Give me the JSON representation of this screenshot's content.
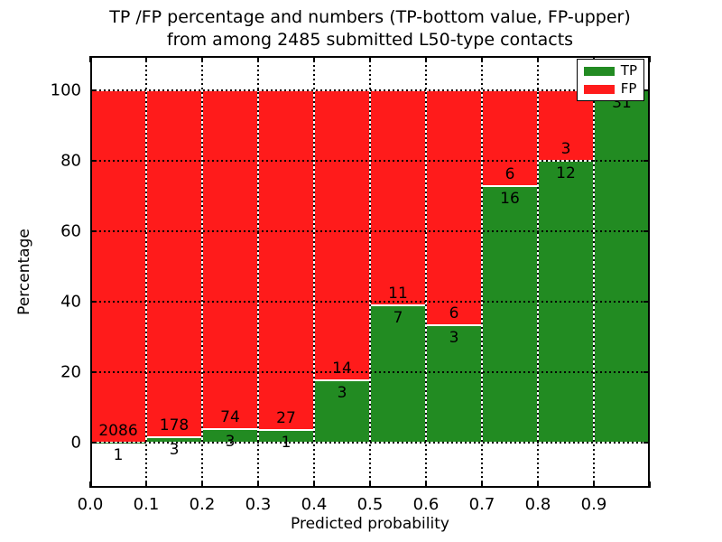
{
  "title": {
    "line1": "TP /FP percentage and numbers (TP-bottom value, FP-upper)",
    "line2": "from among 2485 submitted L50-type contacts"
  },
  "axes": {
    "xlabel": "Predicted probability",
    "ylabel": "Percentage",
    "x_tick_labels": [
      "0.0",
      "0.1",
      "0.2",
      "0.3",
      "0.4",
      "0.5",
      "0.6",
      "0.7",
      "0.8",
      "0.9"
    ],
    "y_tick_labels": [
      "0",
      "20",
      "40",
      "60",
      "80",
      "100"
    ],
    "y_tick_values": [
      0,
      20,
      40,
      60,
      80,
      100
    ],
    "x_tick_values": [
      0.0,
      0.1,
      0.2,
      0.3,
      0.4,
      0.5,
      0.6,
      0.7,
      0.8,
      0.9
    ]
  },
  "legend": [
    {
      "label": "TP",
      "color": "#228B22"
    },
    {
      "label": "FP",
      "color": "#ff1b1b"
    }
  ],
  "colors": {
    "tp": "#228B22",
    "fp": "#ff1b1b",
    "grid": "#000000"
  },
  "chart_data": {
    "type": "bar",
    "stacked": true,
    "unit": "percent_of_bin",
    "title": "TP /FP percentage and numbers (TP-bottom value, FP-upper) from among 2485 submitted L50-type contacts",
    "xlabel": "Predicted probability",
    "ylabel": "Percentage",
    "total_contacts": 2485,
    "bin_width": 0.1,
    "xlim": [
      0.0,
      1.0
    ],
    "ylim": [
      -12.8,
      109.7
    ],
    "grid": true,
    "grid_style": "dotted",
    "legend_position": "upper right",
    "series_order_bottom_to_top": [
      "TP",
      "FP"
    ],
    "bins": [
      {
        "x0": 0.0,
        "x1": 0.1,
        "tp": 1,
        "fp": 2086
      },
      {
        "x0": 0.1,
        "x1": 0.2,
        "tp": 3,
        "fp": 178
      },
      {
        "x0": 0.2,
        "x1": 0.3,
        "tp": 3,
        "fp": 74
      },
      {
        "x0": 0.3,
        "x1": 0.4,
        "tp": 1,
        "fp": 27
      },
      {
        "x0": 0.4,
        "x1": 0.5,
        "tp": 3,
        "fp": 14
      },
      {
        "x0": 0.5,
        "x1": 0.6,
        "tp": 7,
        "fp": 11
      },
      {
        "x0": 0.6,
        "x1": 0.7,
        "tp": 3,
        "fp": 6
      },
      {
        "x0": 0.7,
        "x1": 0.8,
        "tp": 16,
        "fp": 6
      },
      {
        "x0": 0.8,
        "x1": 0.9,
        "tp": 12,
        "fp": 3
      },
      {
        "x0": 0.9,
        "x1": 1.0,
        "tp": 31,
        "fp": 0
      }
    ]
  }
}
